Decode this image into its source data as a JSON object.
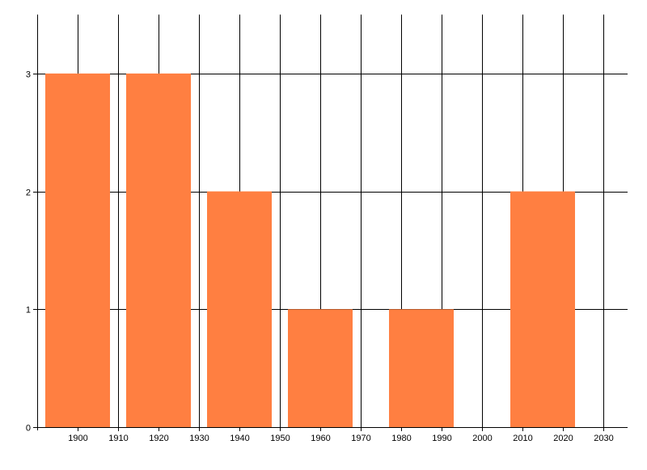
{
  "chart_data": {
    "type": "bar",
    "x_ticks": [
      1900,
      1910,
      1920,
      1930,
      1940,
      1950,
      1960,
      1970,
      1980,
      1990,
      2000,
      2010,
      2020,
      2030
    ],
    "y_ticks": [
      0,
      1,
      2,
      3
    ],
    "bars": [
      {
        "x_start": 1892,
        "x_end": 1908,
        "value": 3
      },
      {
        "x_start": 1912,
        "x_end": 1928,
        "value": 3
      },
      {
        "x_start": 1932,
        "x_end": 1948,
        "value": 2
      },
      {
        "x_start": 1952,
        "x_end": 1968,
        "value": 1
      },
      {
        "x_start": 1977,
        "x_end": 1993,
        "value": 1
      },
      {
        "x_start": 2007,
        "x_end": 2023,
        "value": 2
      }
    ],
    "xlim": [
      1890,
      2036
    ],
    "ylim": [
      0,
      3.5
    ],
    "grid": true,
    "bar_color": "#ff7f41",
    "title": "",
    "xlabel": "",
    "ylabel": ""
  }
}
